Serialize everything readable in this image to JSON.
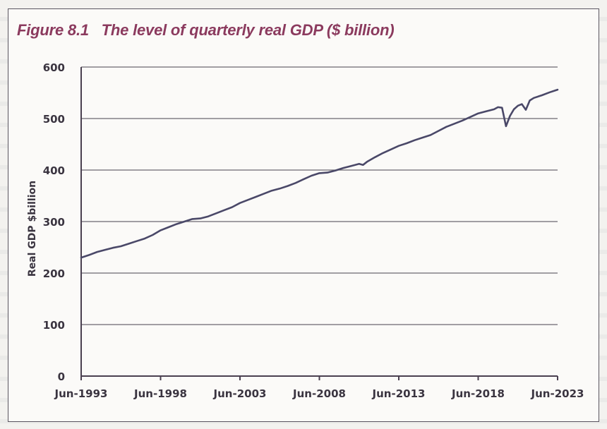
{
  "figure": {
    "title": "Figure 8.1   The level of quarterly real GDP ($ billion)"
  },
  "colors": {
    "title": "#8b3a5e",
    "line": "#4a4868",
    "grid": "#6b6870",
    "axis": "#4a4050",
    "text": "#3a3440"
  },
  "chart_data": {
    "type": "line",
    "title": "The level of quarterly real GDP ($ billion)",
    "xlabel": "",
    "ylabel": "Real GDP $billion",
    "ylim": [
      0,
      600
    ],
    "yticks": [
      0,
      100,
      200,
      300,
      400,
      500,
      600
    ],
    "ytick_labels": [
      "0",
      "100",
      "200",
      "300",
      "400",
      "500",
      "600"
    ],
    "xlim": [
      1993.5,
      2023.5
    ],
    "xticks": [
      1993.5,
      1998.5,
      2003.5,
      2008.5,
      2013.5,
      2018.5,
      2023.5
    ],
    "xtick_labels": [
      "Jun-1993",
      "Jun-1998",
      "Jun-2003",
      "Jun-2008",
      "Jun-2013",
      "Jun-2018",
      "Jun-2023"
    ],
    "grid": "horizontal",
    "legend": "none",
    "series": [
      {
        "name": "Real GDP",
        "x": [
          1993.5,
          1994.0,
          1994.5,
          1995.0,
          1995.5,
          1996.0,
          1996.5,
          1997.0,
          1997.5,
          1998.0,
          1998.5,
          1999.0,
          1999.5,
          2000.0,
          2000.5,
          2001.0,
          2001.5,
          2002.0,
          2002.5,
          2003.0,
          2003.5,
          2004.0,
          2004.5,
          2005.0,
          2005.5,
          2006.0,
          2006.5,
          2007.0,
          2007.5,
          2008.0,
          2008.5,
          2009.0,
          2009.5,
          2010.0,
          2010.5,
          2011.0,
          2011.25,
          2011.5,
          2012.0,
          2012.5,
          2013.0,
          2013.5,
          2014.0,
          2014.5,
          2015.0,
          2015.5,
          2016.0,
          2016.5,
          2017.0,
          2017.5,
          2018.0,
          2018.5,
          2019.0,
          2019.5,
          2019.75,
          2020.0,
          2020.25,
          2020.5,
          2020.75,
          2021.0,
          2021.25,
          2021.5,
          2021.75,
          2022.0,
          2022.5,
          2023.0,
          2023.5
        ],
        "values": [
          230,
          235,
          241,
          245,
          249,
          252,
          257,
          262,
          267,
          274,
          283,
          289,
          295,
          300,
          305,
          306,
          310,
          316,
          322,
          328,
          336,
          342,
          348,
          354,
          360,
          364,
          369,
          375,
          382,
          389,
          394,
          395,
          399,
          404,
          408,
          412,
          410,
          416,
          425,
          433,
          440,
          447,
          452,
          458,
          463,
          468,
          476,
          484,
          490,
          496,
          503,
          510,
          514,
          518,
          522,
          521,
          485,
          505,
          518,
          525,
          528,
          517,
          535,
          540,
          545,
          551,
          556
        ]
      }
    ]
  }
}
